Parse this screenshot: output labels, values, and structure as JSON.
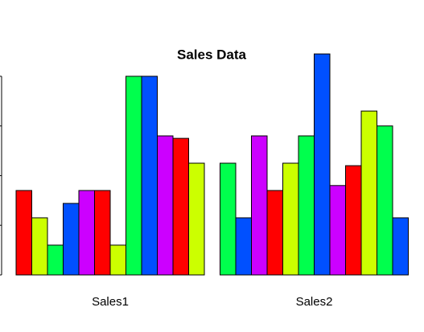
{
  "chart_data": {
    "type": "grouped_bar",
    "title": "Sales Data",
    "categories": [
      "Sales1",
      "Sales2"
    ],
    "values": [
      [
        17,
        11.5,
        6,
        14.4,
        17,
        17,
        6,
        40,
        40,
        28,
        27.5,
        22.5
      ],
      [
        22.5,
        11.5,
        28,
        17,
        22.5,
        28,
        44.5,
        18,
        22,
        33,
        30,
        11.5
      ]
    ],
    "colors": [
      "#FF0000",
      "#CCFF00",
      "#00FF4D",
      "#0050FF",
      "#CC00FF"
    ],
    "ylim": [
      0,
      45
    ],
    "yticks": [
      0,
      10,
      20,
      30,
      40
    ]
  }
}
